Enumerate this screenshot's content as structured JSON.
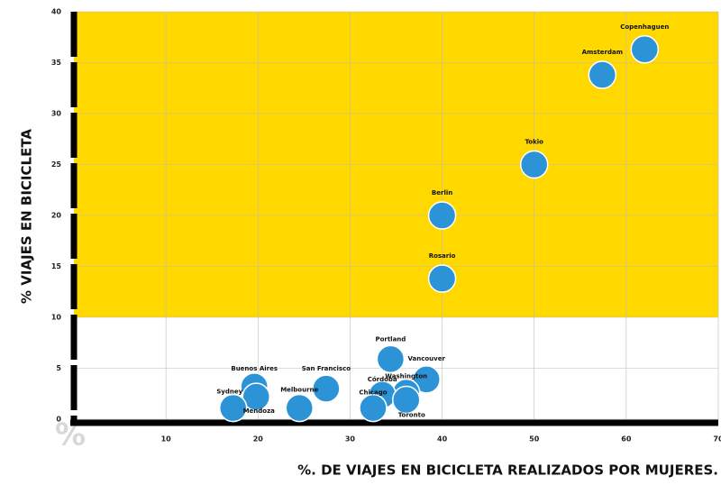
{
  "chart_data": {
    "type": "scatter",
    "x_label": "%. DE VIAJES EN BICICLETA REALIZADOS POR MUJERES.",
    "y_label": "% VIAJES EN BICICLETA",
    "annotation": "%",
    "highlight_ylim": [
      10,
      40
    ],
    "highlight_color": "#ffd800",
    "color": "#2b93d6",
    "grid": true,
    "xlim": [
      0,
      70
    ],
    "xticks": [
      10,
      20,
      30,
      40,
      50,
      60,
      70
    ],
    "ylim": [
      0,
      40
    ],
    "yticks": [
      0,
      5,
      10,
      15,
      20,
      25,
      30,
      35,
      40
    ],
    "labels": [
      "Copenhaguen",
      "Amsterdam",
      "Tokio",
      "Berlin",
      "Rosario",
      "Portland",
      "Vancouver",
      "Washington",
      "Córdoba",
      "Toronto",
      "Chicago",
      "San Francisco",
      "Melbourne",
      "Buenos Aires",
      "Mendoza",
      "Sydney"
    ],
    "x": [
      62.0,
      57.4,
      50.0,
      40.0,
      40.0,
      34.4,
      38.3,
      36.1,
      33.5,
      36.1,
      32.5,
      27.4,
      24.5,
      19.6,
      19.8,
      17.3
    ],
    "y": [
      36.3,
      33.8,
      25.0,
      20.0,
      13.8,
      5.9,
      3.9,
      2.6,
      2.4,
      1.9,
      1.1,
      3.0,
      1.1,
      3.2,
      2.2,
      1.1
    ]
  }
}
